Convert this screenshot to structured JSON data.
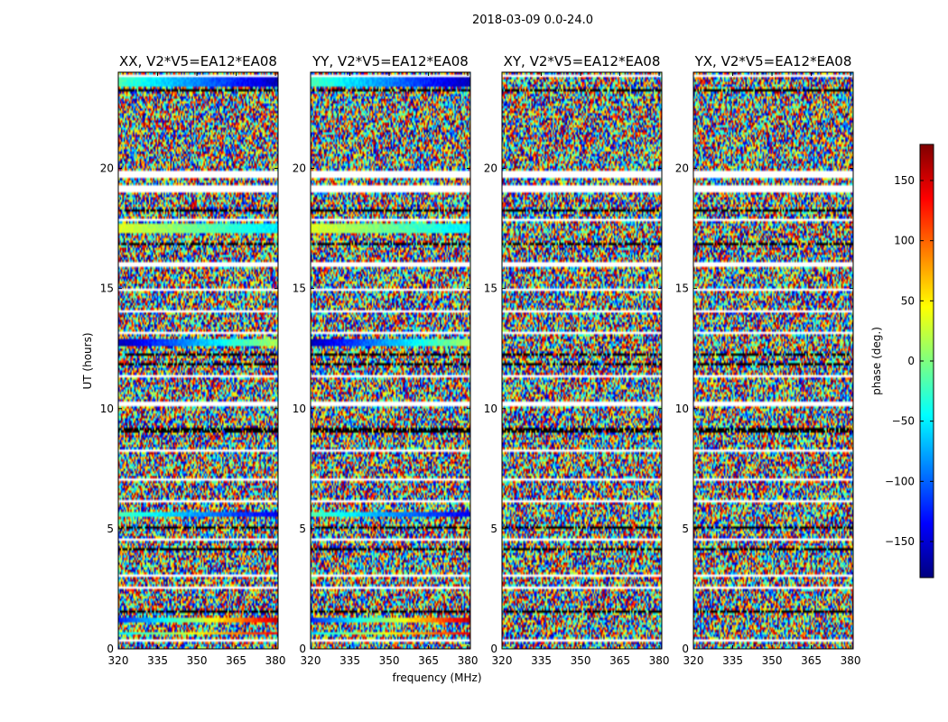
{
  "figure": {
    "suptitle": "2018-03-09 0.0-24.0",
    "xlabel": "frequency (MHz)",
    "ylabel": "UT (hours)"
  },
  "chart_data": {
    "type": "heatmap",
    "x": {
      "label": "frequency (MHz)",
      "lim": [
        320,
        381
      ],
      "ticks": [
        320,
        335,
        350,
        365,
        380
      ]
    },
    "y": {
      "label": "UT (hours)",
      "lim": [
        0,
        24
      ],
      "ticks": [
        0,
        5,
        10,
        15,
        20
      ]
    },
    "colorbar": {
      "label": "phase (deg.)",
      "lim": [
        -180,
        180
      ],
      "ticks": [
        -150,
        -100,
        -50,
        0,
        50,
        100,
        150
      ],
      "tick_labels": [
        "−150",
        "−100",
        "−50",
        "0",
        "50",
        "100",
        "150"
      ],
      "colormap": [
        "#00007f",
        "#0000ff",
        "#007fff",
        "#00ffff",
        "#7fff7f",
        "#ffff00",
        "#ff7f00",
        "#ff0000",
        "#7f0000"
      ]
    },
    "description": "Phase noise over the band; coherent (smooth) phase rows in XX and YY near 0.6-1.8 h, 5.5-5.7 h, 12.6-13 h, 17.2-17.8 h and 23.1-24 h; blank (flagged) rows near 2.5, 4.5, 7, 8.3, 10.2, 14, 16 and 19.6-20 h; dark rows near 9.2, 12 and 1.5 h.",
    "panels": [
      {
        "title": "XX, V2*V5=EA12*EA08"
      },
      {
        "title": "YY, V2*V5=EA12*EA08"
      },
      {
        "title": "XY, V2*V5=EA12*EA08"
      },
      {
        "title": "YX, V2*V5=EA12*EA08"
      }
    ]
  }
}
